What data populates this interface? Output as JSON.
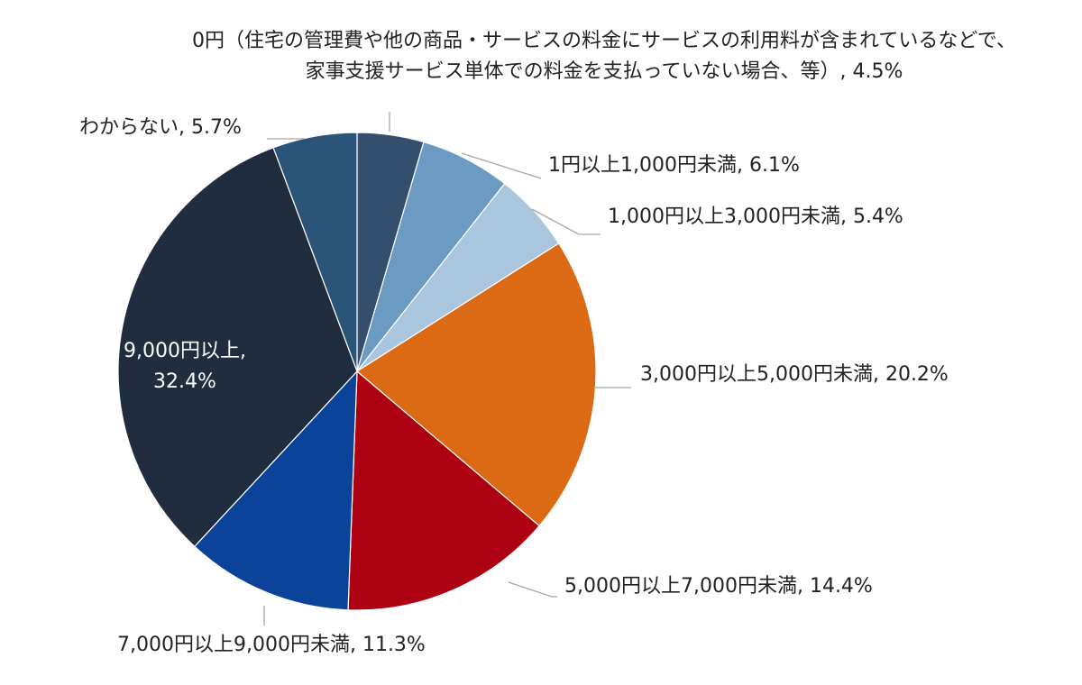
{
  "chart_data": {
    "type": "pie",
    "title": "",
    "slices": [
      {
        "label": "0円（住宅の管理費や他の商品・サービスの料金にサービスの利用料が含まれているなどで、家事支援サービス単体での料金を支払っていない場合、等）",
        "label_lines": [
          "0円（住宅の管理費や他の商品・サービスの料金にサービスの利用料が含まれているなどで、",
          "家事支援サービス単体での料金を支払っていない場合、等）, 4.5%"
        ],
        "value": 4.5,
        "value_text": "4.5%",
        "color": "#344f6e"
      },
      {
        "label": "1円以上1,000円未満",
        "label_lines": [
          "1円以上1,000円未満, 6.1%"
        ],
        "value": 6.1,
        "value_text": "6.1%",
        "color": "#6b9bc3"
      },
      {
        "label": "1,000円以上3,000円未満",
        "label_lines": [
          "1,000円以上3,000円未満, 5.4%"
        ],
        "value": 5.4,
        "value_text": "5.4%",
        "color": "#a9c6de"
      },
      {
        "label": "3,000円以上5,000円未満",
        "label_lines": [
          "3,000円以上5,000円未満, 20.2%"
        ],
        "value": 20.2,
        "value_text": "20.2%",
        "color": "#dc6914"
      },
      {
        "label": "5,000円以上7,000円未満",
        "label_lines": [
          "5,000円以上7,000円未満, 14.4%"
        ],
        "value": 14.4,
        "value_text": "14.4%",
        "color": "#ad0013"
      },
      {
        "label": "7,000円以上9,000円未満",
        "label_lines": [
          "7,000円以上9,000円未満, 11.3%"
        ],
        "value": 11.3,
        "value_text": "11.3%",
        "color": "#0b439b"
      },
      {
        "label": "9,000円以上",
        "label_lines": [
          "9,000円以上,",
          "32.4%"
        ],
        "value": 32.4,
        "value_text": "32.4%",
        "color": "#1f2d3e"
      },
      {
        "label": "わからない",
        "label_lines": [
          "わからない, 5.7%"
        ],
        "value": 5.7,
        "value_text": "5.7%",
        "color": "#2b5479"
      }
    ],
    "legend": "none",
    "start_angle": "12 o'clock",
    "direction": "clockwise"
  }
}
